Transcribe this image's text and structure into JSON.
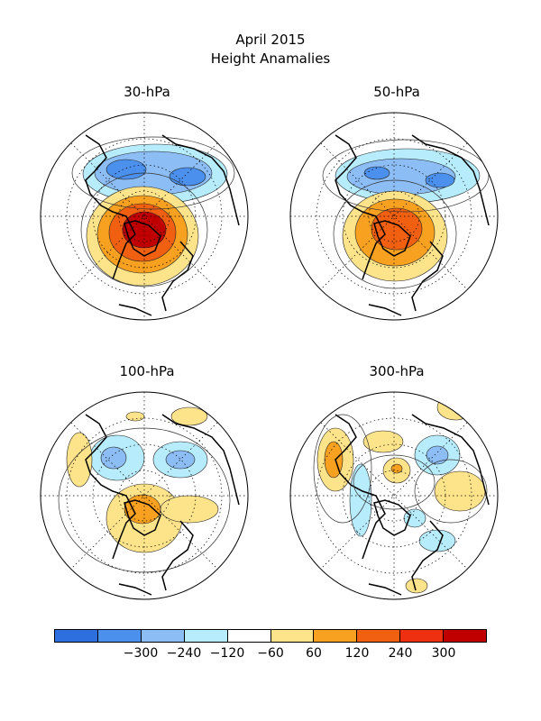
{
  "title": "April 2015",
  "subtitle": "Height Anamalies",
  "panels": [
    {
      "label": "30-hPa"
    },
    {
      "label": "50-hPa"
    },
    {
      "label": "100-hPa"
    },
    {
      "label": "300-hPa"
    }
  ],
  "colorbar": {
    "colors": [
      "#2e6fe0",
      "#4a90ec",
      "#8cbdf5",
      "#b7ecfc",
      "#ffffff",
      "#fde38a",
      "#f8a020",
      "#f06010",
      "#ee3010",
      "#c00000"
    ],
    "ticks": [
      "-300",
      "-240",
      "-120",
      "-60",
      "60",
      "120",
      "240",
      "300"
    ]
  },
  "colors": {
    "neg_strong": "#4a90ec",
    "neg_mid": "#8cbdf5",
    "neg_weak": "#b7ecfc",
    "pos_weak": "#fde38a",
    "pos_mid": "#f8a020",
    "pos_strong": "#f06010",
    "pos_max": "#c00000"
  }
}
